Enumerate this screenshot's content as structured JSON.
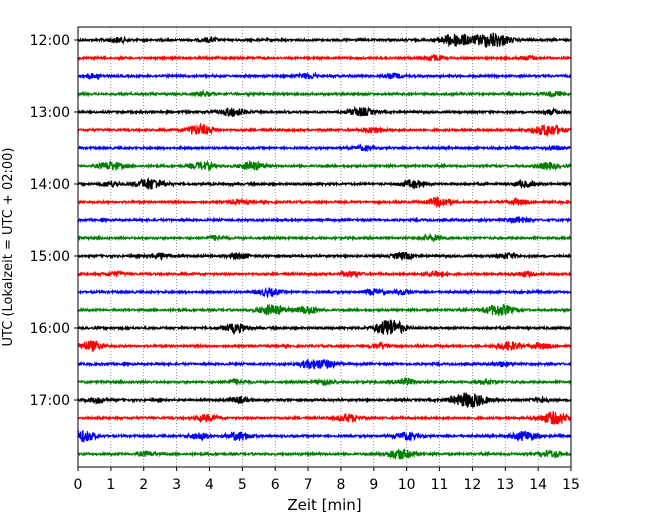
{
  "chart_data": {
    "type": "line",
    "subtype": "helicorder seismogram",
    "title": "",
    "xlabel": "Zeit  [min]",
    "ylabel": "UTC (Lokalzeit = UTC + 02:00)",
    "xlim": [
      0,
      15
    ],
    "x_ticks": [
      0,
      1,
      2,
      3,
      4,
      5,
      6,
      7,
      8,
      9,
      10,
      11,
      12,
      13,
      14,
      15
    ],
    "x_tick_labels": [
      "0",
      "1",
      "2",
      "3",
      "4",
      "5",
      "6",
      "7",
      "8",
      "9",
      "10",
      "11",
      "12",
      "13",
      "14",
      "15"
    ],
    "grid": "vertical dotted at each minute",
    "trace_interval_minutes": 15,
    "hour_labels": [
      {
        "label": "12:00",
        "trace_index": 0
      },
      {
        "label": "13:00",
        "trace_index": 4
      },
      {
        "label": "14:00",
        "trace_index": 8
      },
      {
        "label": "15:00",
        "trace_index": 12
      },
      {
        "label": "16:00",
        "trace_index": 16
      },
      {
        "label": "17:00",
        "trace_index": 20
      }
    ],
    "trace_colors": [
      "#000000",
      "#ff0000",
      "#0000ff",
      "#008000"
    ],
    "traces": [
      {
        "start": "12:00",
        "events": [
          [
            1.2,
            0.55
          ],
          [
            4.0,
            0.45
          ],
          [
            11.5,
            1.4
          ],
          [
            12.6,
            1.6
          ]
        ]
      },
      {
        "start": "12:15",
        "events": [
          [
            10.8,
            0.6
          ],
          [
            13.7,
            0.4
          ]
        ]
      },
      {
        "start": "12:30",
        "events": [
          [
            0.4,
            0.45
          ],
          [
            7.0,
            0.55
          ],
          [
            9.6,
            0.5
          ]
        ]
      },
      {
        "start": "12:45",
        "events": [
          [
            3.8,
            0.45
          ],
          [
            14.5,
            0.5
          ]
        ]
      },
      {
        "start": "13:00",
        "events": [
          [
            4.7,
            0.9
          ],
          [
            8.6,
            0.9
          ],
          [
            14.4,
            0.5
          ]
        ]
      },
      {
        "start": "13:15",
        "events": [
          [
            3.7,
            1.1
          ],
          [
            9.0,
            0.6
          ],
          [
            14.3,
            1.2
          ]
        ]
      },
      {
        "start": "13:30",
        "events": [
          [
            8.7,
            0.45
          ],
          [
            14.5,
            0.4
          ]
        ]
      },
      {
        "start": "13:45",
        "events": [
          [
            1.0,
            0.9
          ],
          [
            3.8,
            0.8
          ],
          [
            5.3,
            0.9
          ],
          [
            14.3,
            0.7
          ]
        ]
      },
      {
        "start": "14:00",
        "events": [
          [
            1.0,
            0.6
          ],
          [
            2.2,
            1.2
          ],
          [
            10.2,
            0.8
          ],
          [
            13.6,
            0.6
          ]
        ]
      },
      {
        "start": "14:15",
        "events": [
          [
            4.9,
            0.4
          ],
          [
            11.0,
            0.9
          ],
          [
            13.4,
            0.6
          ]
        ]
      },
      {
        "start": "14:30",
        "events": [
          [
            13.4,
            0.6
          ]
        ]
      },
      {
        "start": "14:45",
        "events": [
          [
            4.2,
            0.5
          ],
          [
            10.8,
            0.6
          ]
        ]
      },
      {
        "start": "15:00",
        "events": [
          [
            2.5,
            0.6
          ],
          [
            4.9,
            0.6
          ],
          [
            9.9,
            0.7
          ],
          [
            13.1,
            0.6
          ]
        ]
      },
      {
        "start": "15:15",
        "events": [
          [
            1.1,
            0.45
          ],
          [
            8.3,
            0.6
          ],
          [
            10.9,
            0.6
          ],
          [
            13.6,
            0.5
          ]
        ]
      },
      {
        "start": "15:30",
        "events": [
          [
            5.8,
            0.8
          ],
          [
            9.0,
            0.6
          ],
          [
            9.9,
            0.5
          ]
        ]
      },
      {
        "start": "15:45",
        "events": [
          [
            5.9,
            1.1
          ],
          [
            7.0,
            0.8
          ],
          [
            12.8,
            1.2
          ]
        ]
      },
      {
        "start": "16:00",
        "events": [
          [
            4.8,
            0.9
          ],
          [
            9.4,
            1.1
          ],
          [
            9.6,
            0.9
          ]
        ]
      },
      {
        "start": "16:15",
        "events": [
          [
            0.4,
            1.0
          ],
          [
            9.2,
            0.6
          ],
          [
            13.1,
            0.9
          ],
          [
            14.1,
            0.6
          ]
        ]
      },
      {
        "start": "16:30",
        "events": [
          [
            7.1,
            0.9
          ],
          [
            7.6,
            0.7
          ],
          [
            12.9,
            0.5
          ]
        ]
      },
      {
        "start": "16:45",
        "events": [
          [
            4.8,
            0.55
          ],
          [
            7.5,
            0.55
          ],
          [
            9.9,
            0.7
          ],
          [
            12.4,
            0.5
          ]
        ]
      },
      {
        "start": "17:00",
        "events": [
          [
            0.6,
            0.6
          ],
          [
            4.9,
            0.6
          ],
          [
            11.9,
            1.6
          ],
          [
            14.1,
            0.5
          ]
        ]
      },
      {
        "start": "17:15",
        "events": [
          [
            3.9,
            0.7
          ],
          [
            8.2,
            0.8
          ],
          [
            14.5,
            1.3
          ]
        ]
      },
      {
        "start": "17:30",
        "events": [
          [
            0.1,
            1.2
          ],
          [
            3.7,
            0.7
          ],
          [
            4.9,
            0.9
          ],
          [
            10.0,
            0.8
          ],
          [
            13.6,
            1.0
          ]
        ]
      },
      {
        "start": "17:45",
        "events": [
          [
            2.1,
            0.5
          ],
          [
            9.8,
            1.1
          ],
          [
            14.4,
            0.7
          ]
        ]
      }
    ]
  }
}
